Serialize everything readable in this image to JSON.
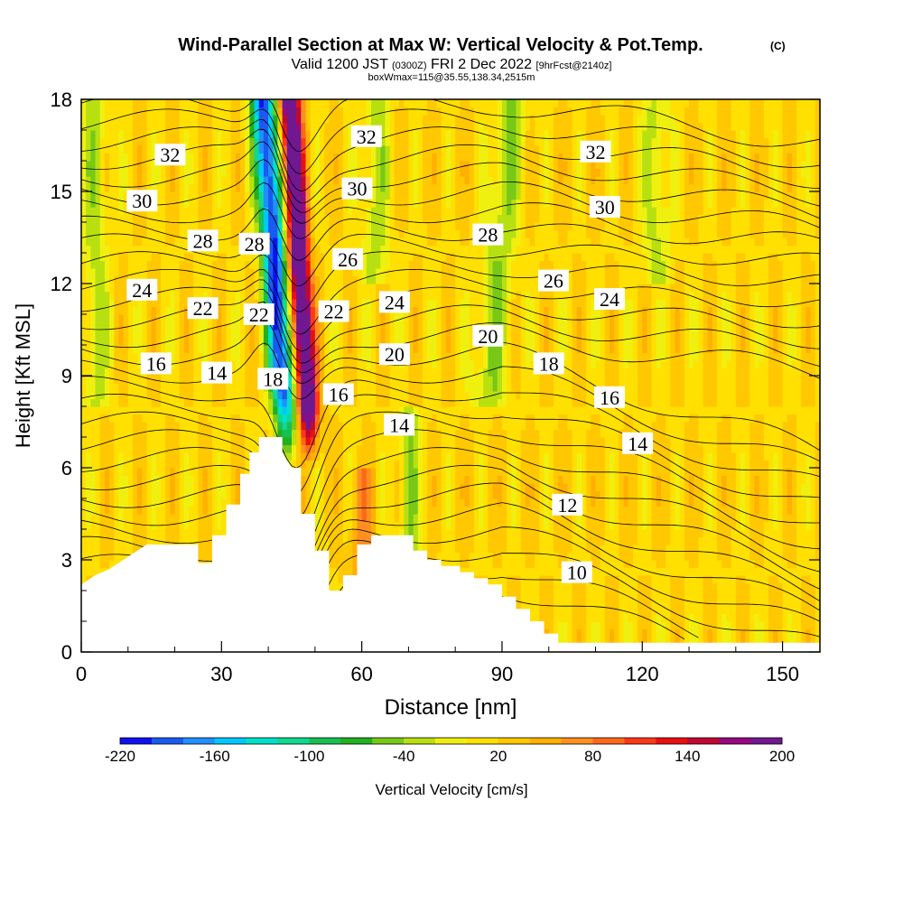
{
  "chart_data": {
    "type": "heatmap",
    "title": "Wind-Parallel Section at Max W: Vertical Velocity & Pot.Temp.",
    "title_mark": "(C)",
    "subtitle_main_a": "Valid 1200 JST",
    "subtitle_small_a": "(0300Z)",
    "subtitle_main_b": "FRI 2 Dec 2022",
    "subtitle_small_b": "[9hrFcst@2140z]",
    "subtitle2": "boxWmax=115@35.55,138.34,2515m",
    "xlabel": "Distance [nm]",
    "ylabel": "Height [Kft MSL]",
    "xlim": [
      0,
      158
    ],
    "ylim": [
      0,
      18
    ],
    "xticks": [
      0,
      30,
      60,
      90,
      120,
      150
    ],
    "yticks": [
      0,
      3,
      6,
      9,
      12,
      15,
      18
    ],
    "colorbar": {
      "label": "Vertical Velocity [cm/s]",
      "tick_labels": [
        "-220",
        "-160",
        "-100",
        "-40",
        "20",
        "80",
        "140",
        "200"
      ],
      "tick_values": [
        -220,
        -160,
        -100,
        -40,
        20,
        80,
        140,
        200
      ],
      "min": -220,
      "max": 200,
      "colors": [
        "#1010f0",
        "#1a5af0",
        "#1e90ff",
        "#00c8ff",
        "#00e0c8",
        "#10d890",
        "#18c050",
        "#20b020",
        "#78c818",
        "#b8e010",
        "#f0f010",
        "#ffe000",
        "#ffc800",
        "#ffb000",
        "#ff9020",
        "#ff6818",
        "#ff3818",
        "#e81010",
        "#c00830",
        "#980880",
        "#701890"
      ]
    },
    "terrain": [
      [
        0,
        2.2
      ],
      [
        3,
        2.5
      ],
      [
        6,
        2.7
      ],
      [
        9,
        3.0
      ],
      [
        12,
        3.3
      ],
      [
        14,
        3.5
      ],
      [
        18,
        3.5
      ],
      [
        22,
        3.5
      ],
      [
        25,
        3.5
      ],
      [
        25,
        2.9
      ],
      [
        28,
        2.9
      ],
      [
        28,
        3.8
      ],
      [
        31,
        3.8
      ],
      [
        31,
        4.8
      ],
      [
        34,
        4.8
      ],
      [
        34,
        5.8
      ],
      [
        36,
        5.8
      ],
      [
        36,
        6.5
      ],
      [
        38,
        6.5
      ],
      [
        38,
        7.0
      ],
      [
        40,
        7.0
      ],
      [
        42,
        7.0
      ],
      [
        43,
        7.0
      ],
      [
        43,
        6.5
      ],
      [
        45,
        6.0
      ],
      [
        47,
        6.0
      ],
      [
        47,
        4.5
      ],
      [
        50,
        4.5
      ],
      [
        50,
        3.3
      ],
      [
        53,
        3.3
      ],
      [
        53,
        2.0
      ],
      [
        56,
        2.0
      ],
      [
        56,
        2.5
      ],
      [
        59,
        2.5
      ],
      [
        59,
        3.5
      ],
      [
        62,
        3.5
      ],
      [
        62,
        3.8
      ],
      [
        65,
        3.8
      ],
      [
        68,
        3.8
      ],
      [
        71,
        3.8
      ],
      [
        71,
        3.3
      ],
      [
        74,
        3.3
      ],
      [
        74,
        3.0
      ],
      [
        77,
        3.0
      ],
      [
        77,
        2.8
      ],
      [
        81,
        2.8
      ],
      [
        81,
        2.6
      ],
      [
        84,
        2.6
      ],
      [
        84,
        2.4
      ],
      [
        87,
        2.4
      ],
      [
        87,
        2.2
      ],
      [
        90,
        2.2
      ],
      [
        90,
        1.8
      ],
      [
        93,
        1.8
      ],
      [
        93,
        1.4
      ],
      [
        96,
        1.4
      ],
      [
        96,
        1.0
      ],
      [
        99,
        1.0
      ],
      [
        99,
        0.6
      ],
      [
        102,
        0.6
      ],
      [
        102,
        0.3
      ],
      [
        158,
        0.3
      ]
    ],
    "theta_labels": [
      {
        "text": "32",
        "x": 19,
        "y": 16.2
      },
      {
        "text": "30",
        "x": 13,
        "y": 14.7
      },
      {
        "text": "28",
        "x": 26,
        "y": 13.4
      },
      {
        "text": "28",
        "x": 37,
        "y": 13.3
      },
      {
        "text": "24",
        "x": 13,
        "y": 11.8
      },
      {
        "text": "22",
        "x": 26,
        "y": 11.2
      },
      {
        "text": "22",
        "x": 38,
        "y": 11.0
      },
      {
        "text": "16",
        "x": 16,
        "y": 9.4
      },
      {
        "text": "14",
        "x": 29,
        "y": 9.1
      },
      {
        "text": "18",
        "x": 41,
        "y": 8.9
      },
      {
        "text": "32",
        "x": 61,
        "y": 16.8
      },
      {
        "text": "30",
        "x": 59,
        "y": 15.1
      },
      {
        "text": "26",
        "x": 57,
        "y": 12.8
      },
      {
        "text": "22",
        "x": 54,
        "y": 11.1
      },
      {
        "text": "24",
        "x": 67,
        "y": 11.4
      },
      {
        "text": "20",
        "x": 67,
        "y": 9.7
      },
      {
        "text": "16",
        "x": 55,
        "y": 8.4
      },
      {
        "text": "14",
        "x": 68,
        "y": 7.4
      },
      {
        "text": "28",
        "x": 87,
        "y": 13.6
      },
      {
        "text": "20",
        "x": 87,
        "y": 10.3
      },
      {
        "text": "26",
        "x": 101,
        "y": 12.1
      },
      {
        "text": "18",
        "x": 100,
        "y": 9.4
      },
      {
        "text": "32",
        "x": 110,
        "y": 16.3
      },
      {
        "text": "30",
        "x": 112,
        "y": 14.5
      },
      {
        "text": "24",
        "x": 113,
        "y": 11.5
      },
      {
        "text": "16",
        "x": 113,
        "y": 8.3
      },
      {
        "text": "14",
        "x": 119,
        "y": 6.8
      },
      {
        "text": "12",
        "x": 104,
        "y": 4.8
      },
      {
        "text": "10",
        "x": 106,
        "y": 2.6
      }
    ]
  }
}
